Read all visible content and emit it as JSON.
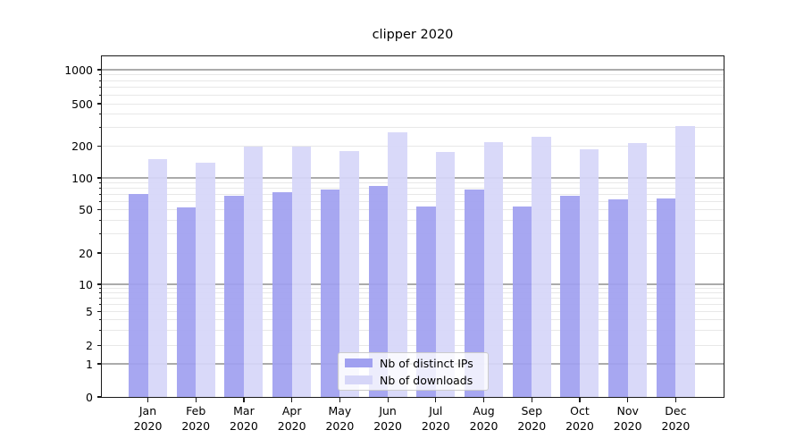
{
  "title": "clipper 2020",
  "chart_data": {
    "type": "bar",
    "title": "clipper 2020",
    "xlabel": "",
    "ylabel": "",
    "yscale": "symlog",
    "ylim": [
      0,
      1360
    ],
    "grid": "both",
    "y_ticks": [
      0,
      1,
      2,
      5,
      10,
      20,
      50,
      100,
      200,
      500,
      1000
    ],
    "categories": [
      "Jan",
      "Feb",
      "Mar",
      "Apr",
      "May",
      "Jun",
      "Jul",
      "Aug",
      "Sep",
      "Oct",
      "Nov",
      "Dec"
    ],
    "year": "2020",
    "series": [
      {
        "name": "Nb of distinct IPs",
        "color": "#a0a0f0",
        "values": [
          70,
          52,
          68,
          73,
          77,
          84,
          54,
          77,
          54,
          68,
          63,
          64
        ]
      },
      {
        "name": "Nb of downloads",
        "color": "#d6d6f8",
        "values": [
          150,
          139,
          198,
          198,
          180,
          272,
          176,
          218,
          243,
          187,
          214,
          310
        ]
      }
    ],
    "legend_position": "lower center"
  },
  "colors": {
    "background": "#ffffff",
    "grid_major": "#ababab",
    "grid_minor": "#e8e8e8",
    "axis": "#1a1a1a",
    "text": "#000000"
  }
}
